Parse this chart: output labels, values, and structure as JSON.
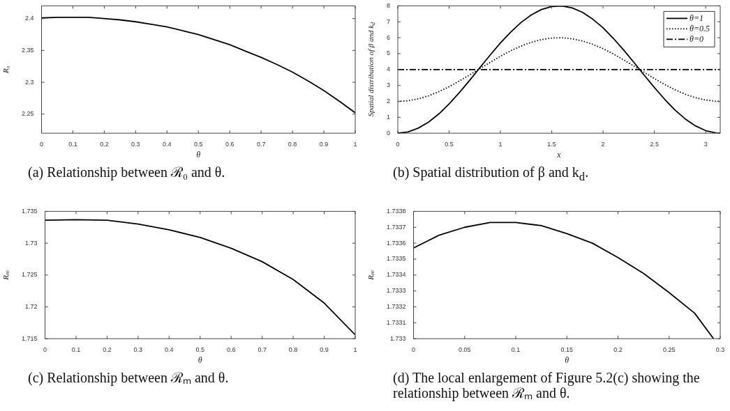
{
  "chart_data": [
    {
      "type": "line",
      "xlabel": "θ",
      "ylabel": "R₀",
      "annotations": [
        "(a) Relationship between ℛ₀ and θ."
      ],
      "xlim": [
        0,
        1
      ],
      "ylim": [
        2.22,
        2.42
      ],
      "xticks": [
        0,
        0.1,
        0.2,
        0.3,
        0.4,
        0.5,
        0.6,
        0.7,
        0.8,
        0.9,
        1
      ],
      "yticks": [
        2.25,
        2.3,
        2.35,
        2.4
      ],
      "grid": false,
      "marker": "none",
      "line_style": "solid",
      "x": [
        0,
        0.05,
        0.1,
        0.15,
        0.2,
        0.25,
        0.3,
        0.35,
        0.4,
        0.45,
        0.5,
        0.55,
        0.6,
        0.65,
        0.7,
        0.75,
        0.8,
        0.85,
        0.9,
        0.95,
        1
      ],
      "series": [
        {
          "color": "#000000",
          "values": [
            2.401,
            2.402,
            2.402,
            2.402,
            2.4,
            2.398,
            2.395,
            2.391,
            2.387,
            2.381,
            2.375,
            2.367,
            2.359,
            2.349,
            2.339,
            2.328,
            2.316,
            2.302,
            2.287,
            2.27,
            2.252
          ]
        }
      ]
    },
    {
      "type": "line",
      "xlabel": "x",
      "ylabel": "Spatial distribution of β and k$_{d}$",
      "annotations": [
        "(b) Spatial distribution of β and k$_{d}$."
      ],
      "xlim": [
        0,
        3.1416
      ],
      "ylim": [
        0,
        8
      ],
      "xticks": [
        0,
        0.5,
        1,
        1.5,
        2,
        2.5,
        3
      ],
      "yticks": [
        0,
        1,
        2,
        3,
        4,
        5,
        6,
        7,
        8
      ],
      "grid": false,
      "marker": "none",
      "legend": "top right",
      "x": [
        0,
        0.1,
        0.2,
        0.3,
        0.4,
        0.5,
        0.6,
        0.7,
        0.8,
        0.9,
        1,
        1.1,
        1.2,
        1.3,
        1.4,
        1.5,
        1.6,
        1.7,
        1.8,
        1.9,
        2,
        2.1,
        2.2,
        2.3,
        2.4,
        2.5,
        2.6,
        2.7,
        2.8,
        2.9,
        3,
        3.1,
        3.1416
      ],
      "series": [
        {
          "name": "θ=1",
          "color": "#000000",
          "line_style": "solid",
          "values": [
            0,
            0.08,
            0.32,
            0.7,
            1.21,
            1.84,
            2.55,
            3.32,
            4.12,
            4.91,
            5.67,
            6.35,
            6.95,
            7.43,
            7.77,
            7.96,
            7.99,
            7.87,
            7.59,
            7.16,
            6.62,
            5.96,
            5.23,
            4.45,
            3.65,
            2.87,
            2.13,
            1.46,
            0.9,
            0.46,
            0.16,
            0.01,
            0
          ]
        },
        {
          "name": "θ=0.5",
          "color": "#000000",
          "line_style": "dotted",
          "values": [
            2,
            2.04,
            2.16,
            2.35,
            2.61,
            2.92,
            3.28,
            3.66,
            4.06,
            4.45,
            4.83,
            5.18,
            5.47,
            5.71,
            5.88,
            5.98,
            6,
            5.93,
            5.79,
            5.58,
            5.31,
            4.98,
            4.61,
            4.22,
            3.83,
            3.43,
            3.06,
            2.73,
            2.45,
            2.23,
            2.08,
            2.01,
            2
          ]
        },
        {
          "name": "θ=0",
          "color": "#000000",
          "line_style": "dashed",
          "x": [
            0,
            3.1416
          ],
          "values": [
            4,
            4
          ]
        }
      ]
    },
    {
      "type": "line",
      "xlabel": "θ",
      "ylabel": "Rₘ",
      "annotations": [
        "(c) Relationship between ℛₘ and θ."
      ],
      "xlim": [
        0,
        1
      ],
      "ylim": [
        1.715,
        1.735
      ],
      "xticks": [
        0,
        0.1,
        0.2,
        0.3,
        0.4,
        0.5,
        0.6,
        0.7,
        0.8,
        0.9,
        1
      ],
      "yticks": [
        1.715,
        1.72,
        1.725,
        1.73,
        1.735
      ],
      "grid": false,
      "marker": "none",
      "line_style": "solid",
      "x": [
        0,
        0.1,
        0.2,
        0.3,
        0.4,
        0.5,
        0.6,
        0.7,
        0.8,
        0.9,
        1
      ],
      "series": [
        {
          "color": "#000000",
          "values": [
            1.7336,
            1.7337,
            1.7336,
            1.733,
            1.7321,
            1.7309,
            1.7292,
            1.7271,
            1.7243,
            1.7206,
            1.7156
          ]
        }
      ]
    },
    {
      "type": "line",
      "xlabel": "θ",
      "ylabel": "Rₘ",
      "annotations": [
        "(d) The local enlargement of Figure 5.2(c) showing the relationship between ℛₘ and θ."
      ],
      "xlim": [
        0,
        0.3
      ],
      "ylim": [
        1.733,
        1.7338
      ],
      "xticks": [
        0,
        0.05,
        0.1,
        0.15,
        0.2,
        0.25,
        0.3
      ],
      "yticks": [
        1.733,
        1.7331,
        1.7332,
        1.7333,
        1.7334,
        1.7335,
        1.7336,
        1.7337,
        1.7338
      ],
      "grid": false,
      "marker": "none",
      "line_style": "solid",
      "x": [
        0,
        0.025,
        0.05,
        0.075,
        0.1,
        0.125,
        0.15,
        0.175,
        0.2,
        0.225,
        0.25,
        0.275,
        0.2935
      ],
      "series": [
        {
          "color": "#000000",
          "values": [
            1.73357,
            1.73365,
            1.7337,
            1.73373,
            1.73373,
            1.73371,
            1.73366,
            1.7336,
            1.73351,
            1.73341,
            1.73329,
            1.73316,
            1.733
          ]
        }
      ]
    }
  ]
}
